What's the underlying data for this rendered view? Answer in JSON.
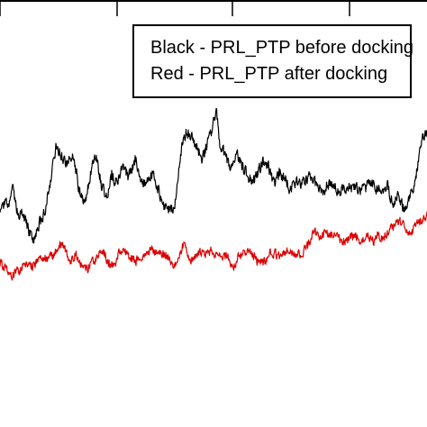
{
  "chart_data": {
    "type": "line",
    "title": "",
    "xlabel": "",
    "ylabel": "",
    "xlim": [
      0,
      474
    ],
    "ylim": [
      0,
      474
    ],
    "top_ticks": [
      0,
      130,
      258,
      388
    ],
    "grid": false,
    "legend": {
      "placement": "top-right",
      "entries": [
        "Black - PRL_PTP before docking",
        "Red - PRL_PTP after docking"
      ]
    },
    "series": [
      {
        "color": "#000000",
        "key_points": [
          [
            0,
            240
          ],
          [
            5,
            224
          ],
          [
            10,
            228
          ],
          [
            14,
            212
          ],
          [
            20,
            240
          ],
          [
            25,
            235
          ],
          [
            32,
            258
          ],
          [
            38,
            268
          ],
          [
            42,
            250
          ],
          [
            48,
            240
          ],
          [
            55,
            205
          ],
          [
            62,
            162
          ],
          [
            68,
            172
          ],
          [
            74,
            185
          ],
          [
            80,
            168
          ],
          [
            88,
            212
          ],
          [
            94,
            225
          ],
          [
            100,
            195
          ],
          [
            106,
            168
          ],
          [
            112,
            205
          ],
          [
            118,
            220
          ],
          [
            124,
            192
          ],
          [
            130,
            206
          ],
          [
            136,
            182
          ],
          [
            142,
            196
          ],
          [
            150,
            176
          ],
          [
            156,
            198
          ],
          [
            162,
            206
          ],
          [
            170,
            190
          ],
          [
            176,
            212
          ],
          [
            182,
            230
          ],
          [
            188,
            232
          ],
          [
            194,
            228
          ],
          [
            200,
            170
          ],
          [
            206,
            146
          ],
          [
            212,
            150
          ],
          [
            218,
            165
          ],
          [
            224,
            175
          ],
          [
            230,
            160
          ],
          [
            236,
            140
          ],
          [
            240,
            122
          ],
          [
            244,
            162
          ],
          [
            250,
            172
          ],
          [
            256,
            188
          ],
          [
            262,
            168
          ],
          [
            268,
            185
          ],
          [
            274,
            192
          ],
          [
            280,
            205
          ],
          [
            286,
            192
          ],
          [
            292,
            178
          ],
          [
            298,
            185
          ],
          [
            304,
            205
          ],
          [
            310,
            192
          ],
          [
            316,
            198
          ],
          [
            322,
            212
          ],
          [
            328,
            200
          ],
          [
            334,
            206
          ],
          [
            340,
            198
          ],
          [
            346,
            196
          ],
          [
            352,
            208
          ],
          [
            358,
            214
          ],
          [
            364,
            202
          ],
          [
            370,
            204
          ],
          [
            376,
            216
          ],
          [
            382,
            206
          ],
          [
            388,
            210
          ],
          [
            394,
            205
          ],
          [
            400,
            212
          ],
          [
            406,
            208
          ],
          [
            412,
            202
          ],
          [
            418,
            210
          ],
          [
            424,
            212
          ],
          [
            430,
            206
          ],
          [
            436,
            228
          ],
          [
            442,
            216
          ],
          [
            448,
            232
          ],
          [
            454,
            218
          ],
          [
            458,
            210
          ],
          [
            462,
            190
          ],
          [
            466,
            165
          ],
          [
            470,
            150
          ],
          [
            474,
            148
          ]
        ],
        "noise": 9
      },
      {
        "color": "#dd0000",
        "key_points": [
          [
            0,
            292
          ],
          [
            6,
            298
          ],
          [
            12,
            306
          ],
          [
            18,
            302
          ],
          [
            24,
            298
          ],
          [
            30,
            292
          ],
          [
            36,
            296
          ],
          [
            42,
            286
          ],
          [
            48,
            288
          ],
          [
            54,
            286
          ],
          [
            60,
            282
          ],
          [
            66,
            270
          ],
          [
            72,
            276
          ],
          [
            78,
            292
          ],
          [
            84,
            282
          ],
          [
            90,
            294
          ],
          [
            96,
            300
          ],
          [
            102,
            292
          ],
          [
            108,
            284
          ],
          [
            114,
            278
          ],
          [
            120,
            290
          ],
          [
            126,
            296
          ],
          [
            132,
            282
          ],
          [
            138,
            280
          ],
          [
            144,
            286
          ],
          [
            150,
            290
          ],
          [
            156,
            286
          ],
          [
            162,
            280
          ],
          [
            168,
            276
          ],
          [
            174,
            280
          ],
          [
            180,
            282
          ],
          [
            186,
            284
          ],
          [
            192,
            294
          ],
          [
            198,
            286
          ],
          [
            204,
            270
          ],
          [
            210,
            290
          ],
          [
            216,
            284
          ],
          [
            222,
            280
          ],
          [
            228,
            282
          ],
          [
            234,
            278
          ],
          [
            240,
            286
          ],
          [
            246,
            284
          ],
          [
            252,
            284
          ],
          [
            258,
            300
          ],
          [
            264,
            286
          ],
          [
            270,
            282
          ],
          [
            276,
            276
          ],
          [
            282,
            286
          ],
          [
            288,
            292
          ],
          [
            294,
            290
          ],
          [
            300,
            280
          ],
          [
            306,
            282
          ],
          [
            312,
            286
          ],
          [
            318,
            276
          ],
          [
            324,
            282
          ],
          [
            330,
            284
          ],
          [
            336,
            280
          ],
          [
            342,
            272
          ],
          [
            348,
            256
          ],
          [
            354,
            262
          ],
          [
            360,
            258
          ],
          [
            366,
            262
          ],
          [
            372,
            258
          ],
          [
            378,
            266
          ],
          [
            384,
            268
          ],
          [
            390,
            262
          ],
          [
            396,
            264
          ],
          [
            402,
            268
          ],
          [
            408,
            262
          ],
          [
            414,
            268
          ],
          [
            420,
            260
          ],
          [
            426,
            266
          ],
          [
            432,
            256
          ],
          [
            438,
            248
          ],
          [
            444,
            246
          ],
          [
            450,
            254
          ],
          [
            456,
            260
          ],
          [
            462,
            250
          ],
          [
            468,
            244
          ],
          [
            474,
            238
          ]
        ],
        "noise": 7
      }
    ]
  }
}
